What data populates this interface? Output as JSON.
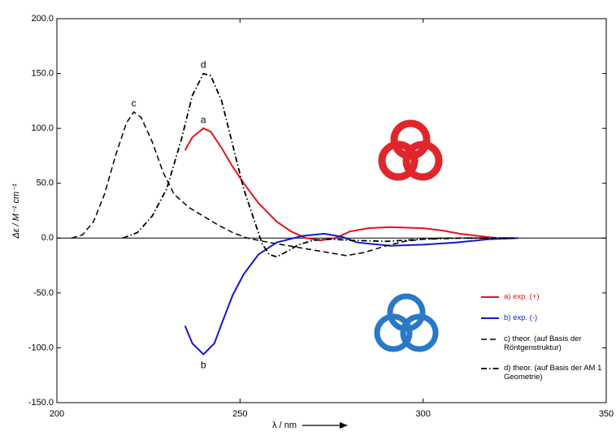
{
  "chart_data": {
    "type": "line",
    "x_label": "λ / nm",
    "y_label": "Δε / M⁻¹ cm⁻¹",
    "xlim": [
      200,
      350
    ],
    "xticks": [
      200,
      250,
      300,
      350
    ],
    "ylim": [
      -150,
      200
    ],
    "yticks": [
      {
        "value": -150,
        "label": "-150.0"
      },
      {
        "value": -100,
        "label": "-100.0"
      },
      {
        "value": -50,
        "label": "-50.0"
      },
      {
        "value": 0,
        "label": "0.0"
      },
      {
        "value": 50,
        "label": "50.0"
      },
      {
        "value": 100,
        "label": "100.0"
      },
      {
        "value": 150,
        "label": "150.0"
      },
      {
        "value": 200,
        "label": "200.0"
      }
    ],
    "grid": false,
    "annotations": [
      "a",
      "b",
      "c",
      "d"
    ],
    "series": [
      {
        "name": "a) exp. (+)",
        "color": "#e3141b",
        "style": "solid",
        "width": 2,
        "x": [
          235,
          237,
          240,
          242,
          245,
          248,
          251,
          255,
          260,
          264,
          268,
          272,
          276,
          280,
          285,
          291,
          300,
          305,
          310,
          315,
          320,
          325
        ],
        "values": [
          80,
          92,
          100,
          97,
          82,
          65,
          50,
          32,
          15,
          6,
          0,
          -2,
          0,
          6,
          9,
          10,
          9,
          7,
          4,
          2,
          0,
          0
        ]
      },
      {
        "name": "b) exp. (-)",
        "color": "#1518c8",
        "style": "solid",
        "width": 2,
        "x": [
          235,
          237,
          240,
          243,
          245,
          248,
          251,
          255,
          260,
          267,
          273,
          278,
          282,
          291,
          300,
          309,
          318,
          326
        ],
        "values": [
          -80,
          -96,
          -106,
          -96,
          -78,
          -52,
          -33,
          -15,
          -4,
          2,
          4,
          1,
          -4,
          -7,
          -6,
          -4,
          -1,
          0
        ]
      },
      {
        "name": "c) theor. (auf Basis der Röntgenstruktur)",
        "color": "#000000",
        "style": "dashed",
        "width": 1.5,
        "x": [
          204,
          207,
          210,
          213,
          216,
          219,
          221,
          223,
          226,
          229,
          232,
          236,
          240,
          244,
          248,
          252,
          258,
          265,
          272,
          279,
          284,
          290,
          295,
          300,
          305,
          315,
          325
        ],
        "values": [
          0,
          3,
          15,
          40,
          75,
          105,
          115,
          110,
          88,
          60,
          40,
          28,
          20,
          12,
          5,
          0,
          -4,
          -8,
          -12,
          -16,
          -13,
          -7,
          -3,
          -1,
          0,
          0,
          0
        ]
      },
      {
        "name": "d) theor. (auf Basis der AM 1 Geometrie)",
        "color": "#000000",
        "style": "dash-dot",
        "width": 1.8,
        "x": [
          218,
          222,
          226,
          230,
          234,
          237,
          240,
          242,
          245,
          248,
          251,
          254,
          256,
          258,
          260,
          263,
          266,
          270,
          275,
          280,
          290,
          300,
          310,
          320,
          325
        ],
        "values": [
          0,
          5,
          20,
          45,
          90,
          130,
          150,
          148,
          125,
          85,
          45,
          15,
          -5,
          -15,
          -17,
          -12,
          -6,
          -2,
          -1,
          -2,
          -3,
          -1,
          0,
          0,
          0
        ]
      }
    ]
  }
}
